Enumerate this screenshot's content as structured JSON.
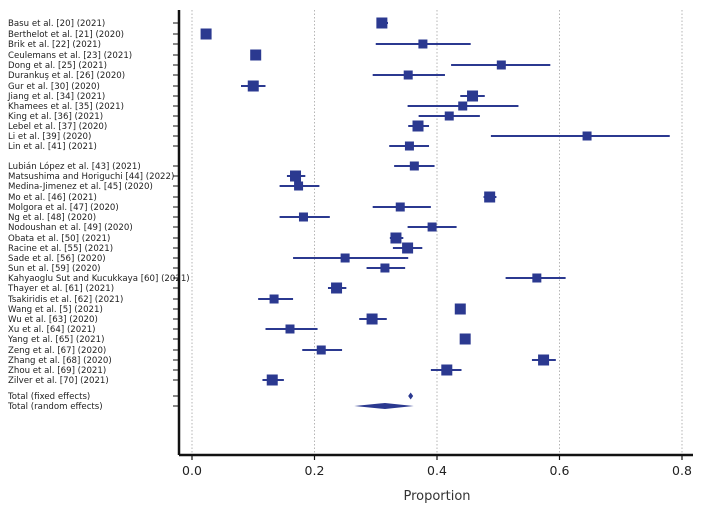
{
  "chart_data": {
    "type": "forest",
    "xlabel": "Proportion",
    "xlim": [
      -0.02,
      0.81
    ],
    "x_ticks": [
      0.0,
      0.2,
      0.4,
      0.6,
      0.8
    ],
    "x_tick_labels": [
      "0.0",
      "0.2",
      "0.4",
      "0.6",
      "0.8"
    ],
    "grid": "vertical-dotted",
    "color": "#2b3990",
    "studies": [
      {
        "label": "Basu et al. [20] (2021)",
        "est": 0.31,
        "lo": 0.305,
        "hi": 0.32,
        "w": 3
      },
      {
        "label": "Berthelot et al. [21] (2020)",
        "est": 0.023,
        "lo": 0.023,
        "hi": 0.023,
        "w": 3
      },
      {
        "label": "Brik et al. [22] (2021)",
        "est": 0.377,
        "lo": 0.3,
        "hi": 0.455,
        "w": 2
      },
      {
        "label": "Ceulemans et al. [23] (2021)",
        "est": 0.104,
        "lo": 0.104,
        "hi": 0.104,
        "w": 3
      },
      {
        "label": "Dong et al. [25] (2021)",
        "est": 0.505,
        "lo": 0.423,
        "hi": 0.585,
        "w": 2
      },
      {
        "label": "Durankuş et al. [26] (2020)",
        "est": 0.353,
        "lo": 0.295,
        "hi": 0.413,
        "w": 2
      },
      {
        "label": "Gur et al. [30] (2020)",
        "est": 0.1,
        "lo": 0.08,
        "hi": 0.12,
        "w": 3
      },
      {
        "label": "Jiang et al. [34] (2021)",
        "est": 0.458,
        "lo": 0.438,
        "hi": 0.478,
        "w": 3
      },
      {
        "label": "Khamees et al. [35] (2021)",
        "est": 0.442,
        "lo": 0.352,
        "hi": 0.533,
        "w": 2
      },
      {
        "label": "King et al. [36] (2021)",
        "est": 0.42,
        "lo": 0.37,
        "hi": 0.47,
        "w": 2
      },
      {
        "label": "Lebel et al. [37] (2020)",
        "est": 0.369,
        "lo": 0.353,
        "hi": 0.387,
        "w": 3
      },
      {
        "label": "Li et al. [39] (2020)",
        "est": 0.645,
        "lo": 0.488,
        "hi": 0.78,
        "w": 2
      },
      {
        "label": "Lin et al. [41] (2021)",
        "est": 0.355,
        "lo": 0.322,
        "hi": 0.387,
        "w": 2
      },
      {
        "label": "Lubián López et al. [43] (2021)",
        "est": 0.363,
        "lo": 0.33,
        "hi": 0.396,
        "w": 2
      },
      {
        "label": "Matsushima and Horiguchi [44] (2022)",
        "est": 0.169,
        "lo": 0.155,
        "hi": 0.185,
        "w": 3
      },
      {
        "label": "Medina-Jimenez et al. [45] (2020)",
        "est": 0.174,
        "lo": 0.143,
        "hi": 0.208,
        "w": 2
      },
      {
        "label": "Mo et al. [46] (2021)",
        "est": 0.486,
        "lo": 0.476,
        "hi": 0.497,
        "w": 3
      },
      {
        "label": "Molgora et al. [47] (2020)",
        "est": 0.34,
        "lo": 0.295,
        "hi": 0.39,
        "w": 2
      },
      {
        "label": "Ng et al. [48] (2020)",
        "est": 0.182,
        "lo": 0.143,
        "hi": 0.225,
        "w": 2
      },
      {
        "label": "Nodoushan et al. [49] (2020)",
        "est": 0.392,
        "lo": 0.352,
        "hi": 0.432,
        "w": 2
      },
      {
        "label": "Obata et al. [50] (2021)",
        "est": 0.333,
        "lo": 0.323,
        "hi": 0.345,
        "w": 3
      },
      {
        "label": "Racine et al. [55] (2021)",
        "est": 0.352,
        "lo": 0.328,
        "hi": 0.376,
        "w": 3
      },
      {
        "label": "Sade et al. [56] (2020)",
        "est": 0.25,
        "lo": 0.165,
        "hi": 0.353,
        "w": 2
      },
      {
        "label": "Sun et al. [59] (2020)",
        "est": 0.315,
        "lo": 0.285,
        "hi": 0.348,
        "w": 2
      },
      {
        "label": "Kahyaoglu Sut and Kucukkaya [60] (2021)",
        "est": 0.563,
        "lo": 0.512,
        "hi": 0.61,
        "w": 2
      },
      {
        "label": "Thayer et al. [61] (2021)",
        "est": 0.236,
        "lo": 0.222,
        "hi": 0.252,
        "w": 3
      },
      {
        "label": "Tsakiridis et al. [62] (2021)",
        "est": 0.134,
        "lo": 0.108,
        "hi": 0.165,
        "w": 2
      },
      {
        "label": "Wang et al. [5] (2021)",
        "est": 0.438,
        "lo": 0.438,
        "hi": 0.438,
        "w": 3
      },
      {
        "label": "Wu et al. [63] (2020)",
        "est": 0.294,
        "lo": 0.273,
        "hi": 0.318,
        "w": 3
      },
      {
        "label": "Xu et al. [64] (2021)",
        "est": 0.16,
        "lo": 0.12,
        "hi": 0.205,
        "w": 2
      },
      {
        "label": "Yang et al. [65] (2021)",
        "est": 0.446,
        "lo": 0.446,
        "hi": 0.446,
        "w": 3
      },
      {
        "label": "Zeng et al. [67] (2020)",
        "est": 0.211,
        "lo": 0.18,
        "hi": 0.245,
        "w": 2
      },
      {
        "label": "Zhang et al. [68] (2020)",
        "est": 0.574,
        "lo": 0.555,
        "hi": 0.594,
        "w": 3
      },
      {
        "label": "Zhou et al. [69] (2021)",
        "est": 0.416,
        "lo": 0.39,
        "hi": 0.44,
        "w": 3
      },
      {
        "label": "Zilver et al. [70] (2021)",
        "est": 0.131,
        "lo": 0.115,
        "hi": 0.15,
        "w": 3
      }
    ],
    "pooled": [
      {
        "label": "Total (fixed effects)",
        "est": 0.357,
        "lo": 0.355,
        "hi": 0.359
      },
      {
        "label": "Total (random effects)",
        "est": 0.315,
        "lo": 0.265,
        "hi": 0.362
      }
    ]
  }
}
